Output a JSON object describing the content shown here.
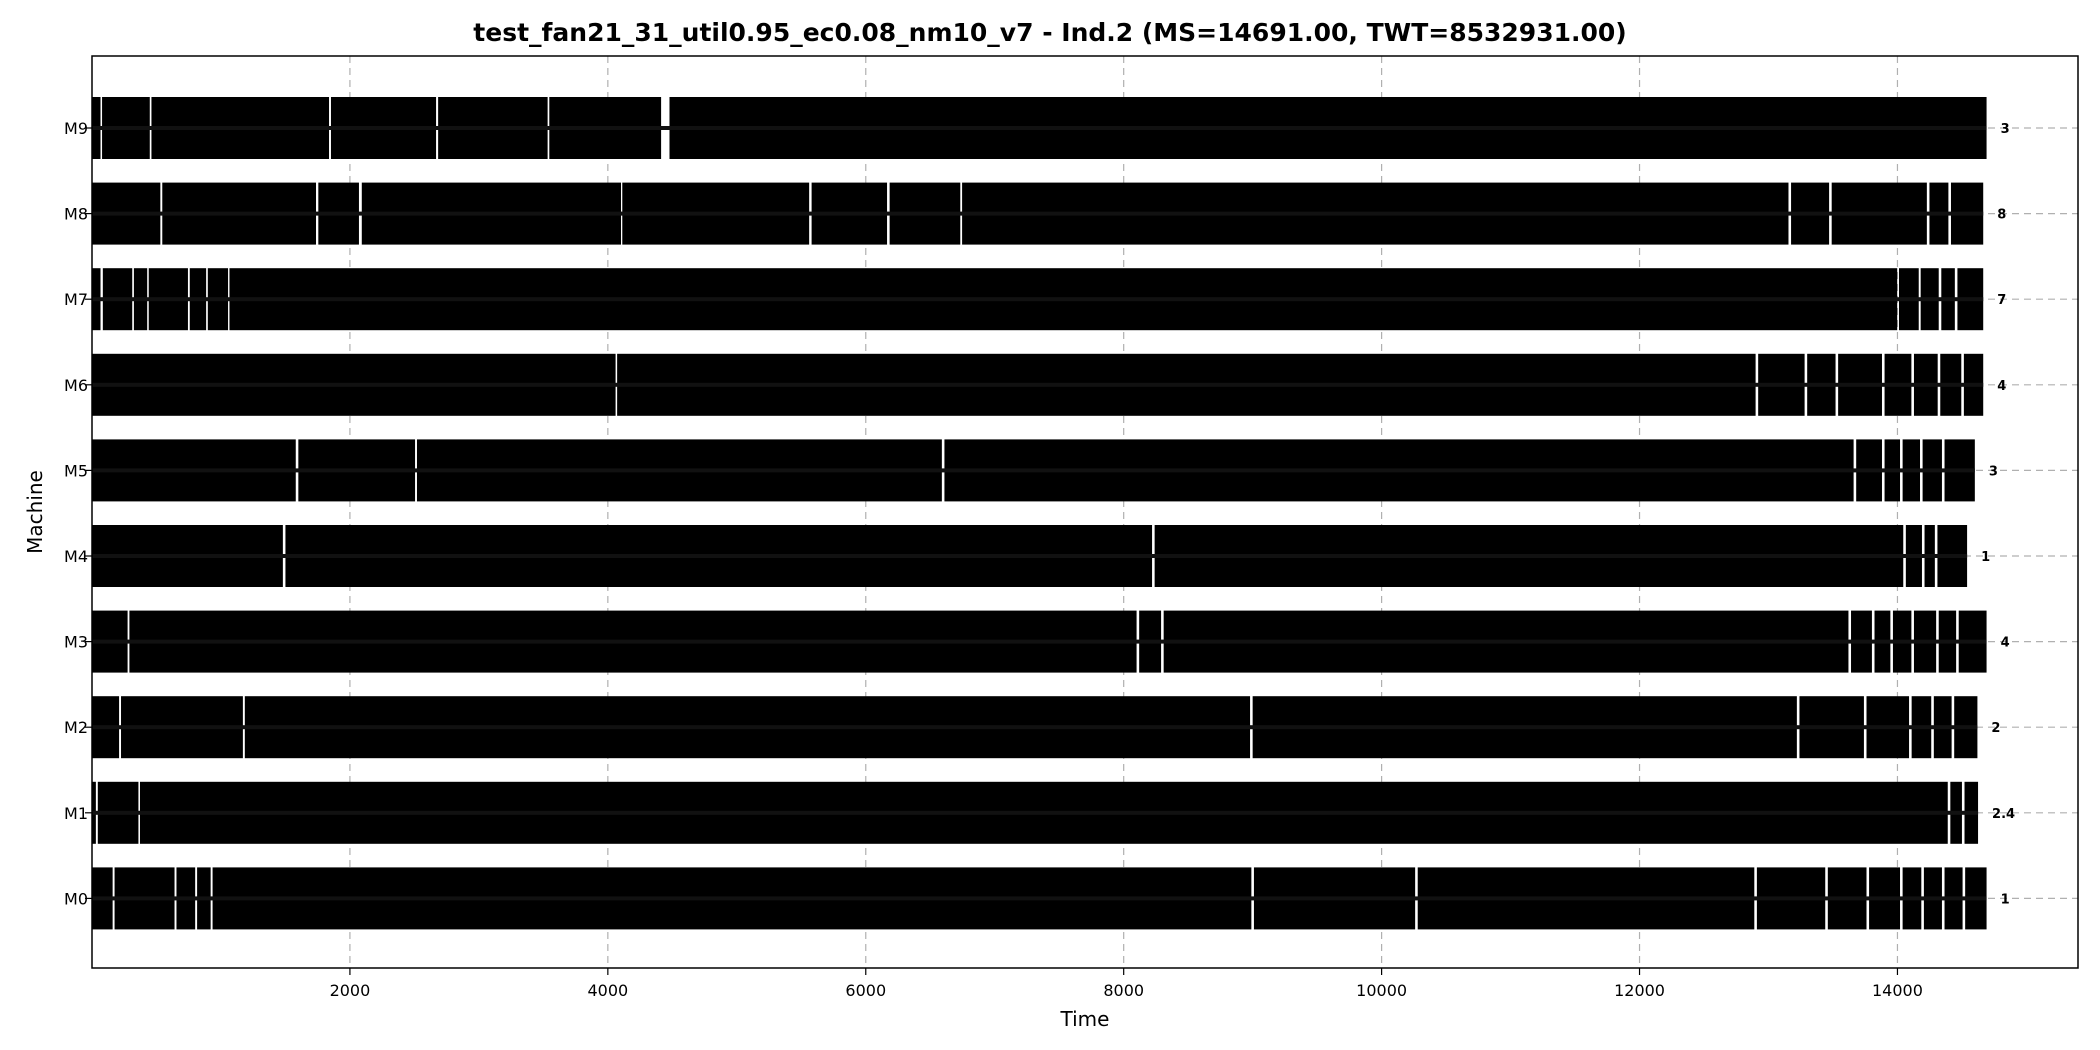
{
  "chart_data": {
    "type": "gantt",
    "title": "test_fan21_31_util0.95_ec0.08_nm10_v7 - Ind.2 (MS=14691.00, TWT=8532931.00)",
    "xlabel": "Time",
    "ylabel": "Machine",
    "xlim": [
      0,
      15400
    ],
    "x_ticks": [
      2000,
      4000,
      6000,
      8000,
      10000,
      12000,
      14000
    ],
    "grid": true,
    "bar_color": "#000000",
    "machines": [
      {
        "name": "M9",
        "end": 14691,
        "end_label": "3",
        "busy": [
          [
            0,
            66
          ],
          [
            78,
            448
          ],
          [
            461,
            1838
          ],
          [
            1853,
            2668
          ],
          [
            2684,
            3533
          ],
          [
            3546,
            4413
          ],
          [
            4478,
            14691
          ]
        ]
      },
      {
        "name": "M8",
        "end": 14665,
        "end_label": "8",
        "busy": [
          [
            0,
            530
          ],
          [
            545,
            1737
          ],
          [
            1755,
            2070
          ],
          [
            2092,
            4102
          ],
          [
            4112,
            5561
          ],
          [
            5580,
            6165
          ],
          [
            6185,
            6733
          ],
          [
            6747,
            13155
          ],
          [
            13175,
            13470
          ],
          [
            13490,
            14228
          ],
          [
            14248,
            14395
          ],
          [
            14415,
            14665
          ]
        ]
      },
      {
        "name": "M7",
        "end": 14665,
        "end_label": "7",
        "busy": [
          [
            0,
            66
          ],
          [
            84,
            312
          ],
          [
            325,
            428
          ],
          [
            440,
            744
          ],
          [
            758,
            885
          ],
          [
            898,
            1055
          ],
          [
            1066,
            13998
          ],
          [
            14012,
            14165
          ],
          [
            14180,
            14320
          ],
          [
            14340,
            14445
          ],
          [
            14465,
            14665
          ]
        ]
      },
      {
        "name": "M6",
        "end": 14665,
        "end_label": "4",
        "busy": [
          [
            0,
            4060
          ],
          [
            4072,
            12900
          ],
          [
            12920,
            13280
          ],
          [
            13300,
            13520
          ],
          [
            13540,
            13880
          ],
          [
            13900,
            14108
          ],
          [
            14128,
            14312
          ],
          [
            14332,
            14495
          ],
          [
            14515,
            14665
          ]
        ]
      },
      {
        "name": "M5",
        "end": 14600,
        "end_label": "3",
        "busy": [
          [
            0,
            1580
          ],
          [
            1600,
            2505
          ],
          [
            2520,
            6590
          ],
          [
            6610,
            13660
          ],
          [
            13680,
            13880
          ],
          [
            13900,
            14020
          ],
          [
            14040,
            14175
          ],
          [
            14195,
            14345
          ],
          [
            14365,
            14600
          ]
        ]
      },
      {
        "name": "M4",
        "end": 14540,
        "end_label": "1",
        "busy": [
          [
            0,
            1480
          ],
          [
            1500,
            8220
          ],
          [
            8240,
            14045
          ],
          [
            14065,
            14190
          ],
          [
            14210,
            14290
          ],
          [
            14310,
            14540
          ]
        ]
      },
      {
        "name": "M3",
        "end": 14691,
        "end_label": "4",
        "busy": [
          [
            0,
            276
          ],
          [
            290,
            8100
          ],
          [
            8120,
            8290
          ],
          [
            8310,
            13620
          ],
          [
            13640,
            13802
          ],
          [
            13822,
            13945
          ],
          [
            13965,
            14108
          ],
          [
            14128,
            14300
          ],
          [
            14320,
            14455
          ],
          [
            14475,
            14691
          ]
        ]
      },
      {
        "name": "M2",
        "end": 14620,
        "end_label": "2",
        "busy": [
          [
            0,
            210
          ],
          [
            225,
            1170
          ],
          [
            1185,
            8980
          ],
          [
            9000,
            13220
          ],
          [
            13240,
            13740
          ],
          [
            13760,
            14090
          ],
          [
            14110,
            14262
          ],
          [
            14282,
            14420
          ],
          [
            14440,
            14620
          ]
        ]
      },
      {
        "name": "M1",
        "end": 14625,
        "end_label": "2.4",
        "busy": [
          [
            0,
            30
          ],
          [
            45,
            360
          ],
          [
            372,
            14390
          ],
          [
            14410,
            14500
          ],
          [
            14520,
            14625
          ]
        ]
      },
      {
        "name": "M0",
        "end": 14691,
        "end_label": "1",
        "busy": [
          [
            0,
            160
          ],
          [
            175,
            640
          ],
          [
            655,
            800
          ],
          [
            815,
            920
          ],
          [
            935,
            8990
          ],
          [
            9010,
            10260
          ],
          [
            10280,
            12890
          ],
          [
            12910,
            13440
          ],
          [
            13460,
            13760
          ],
          [
            13780,
            14020
          ],
          [
            14040,
            14185
          ],
          [
            14205,
            14345
          ],
          [
            14365,
            14505
          ],
          [
            14525,
            14691
          ]
        ]
      }
    ]
  }
}
